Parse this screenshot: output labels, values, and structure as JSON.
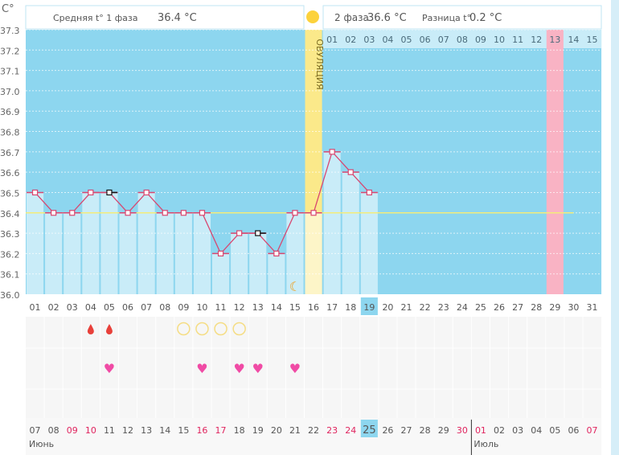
{
  "unit_label": "C°",
  "header": {
    "phase1_label": "Средняя t° 1 фаза",
    "phase1_value": "36.4 °C",
    "phase2_label": "2 фаза",
    "phase2_value": "36.6 °C",
    "diff_label": "Разница t°",
    "diff_value": "0.2 °C"
  },
  "ovulation_label": "ОВУЛЯЦИЯ",
  "colors": {
    "sky": "#8dd6ef",
    "bar": "#c9ecf8",
    "line": "#d9466f",
    "ovulation": "#fbe98a",
    "highlight": "#f9b3c4",
    "weekend": "#e0245e"
  },
  "chart_data": {
    "type": "line",
    "ylabel": "C°",
    "ylim": [
      36.0,
      37.3
    ],
    "yticks": [
      "36.0",
      "36.1",
      "36.2",
      "36.3",
      "36.4",
      "36.5",
      "36.6",
      "36.7",
      "36.8",
      "36.9",
      "37.0",
      "37.1",
      "37.2",
      "37.3"
    ],
    "cycle_days": [
      "01",
      "02",
      "03",
      "04",
      "05",
      "06",
      "07",
      "08",
      "09",
      "10",
      "11",
      "12",
      "13",
      "14",
      "15",
      "16",
      "17",
      "18",
      "19",
      "20",
      "21",
      "22",
      "23",
      "24",
      "25",
      "26",
      "27",
      "28",
      "29",
      "30",
      "31"
    ],
    "temperatures": [
      36.5,
      36.4,
      36.4,
      36.5,
      36.5,
      36.4,
      36.5,
      36.4,
      36.4,
      36.4,
      36.2,
      36.3,
      36.3,
      36.2,
      36.4,
      36.4,
      36.7,
      36.6,
      36.5
    ],
    "coverline": 36.4,
    "ovulation_day": 16,
    "current_day": 19,
    "marked_black_days": [
      5,
      13
    ],
    "phase2_days": [
      "01",
      "02",
      "03",
      "04",
      "05",
      "06",
      "07",
      "08",
      "09",
      "10",
      "11",
      "12",
      "13",
      "14",
      "15"
    ],
    "phase2_highlight": "13"
  },
  "symbols": {
    "drops": [
      4,
      5
    ],
    "circles": [
      9,
      10,
      11,
      12
    ],
    "hearts": [
      5,
      10,
      12,
      13,
      15
    ],
    "moon": 15
  },
  "calendar": {
    "dates": [
      "07",
      "08",
      "09",
      "10",
      "11",
      "12",
      "13",
      "14",
      "15",
      "16",
      "17",
      "18",
      "19",
      "20",
      "21",
      "22",
      "23",
      "24",
      "25",
      "26",
      "27",
      "28",
      "29",
      "30",
      "01",
      "02",
      "03",
      "04",
      "05",
      "06",
      "07"
    ],
    "weekends": [
      2,
      3,
      9,
      10,
      16,
      17,
      23,
      24,
      30
    ],
    "today_index": 18,
    "month1": "Июнь",
    "month2": "Июль"
  }
}
